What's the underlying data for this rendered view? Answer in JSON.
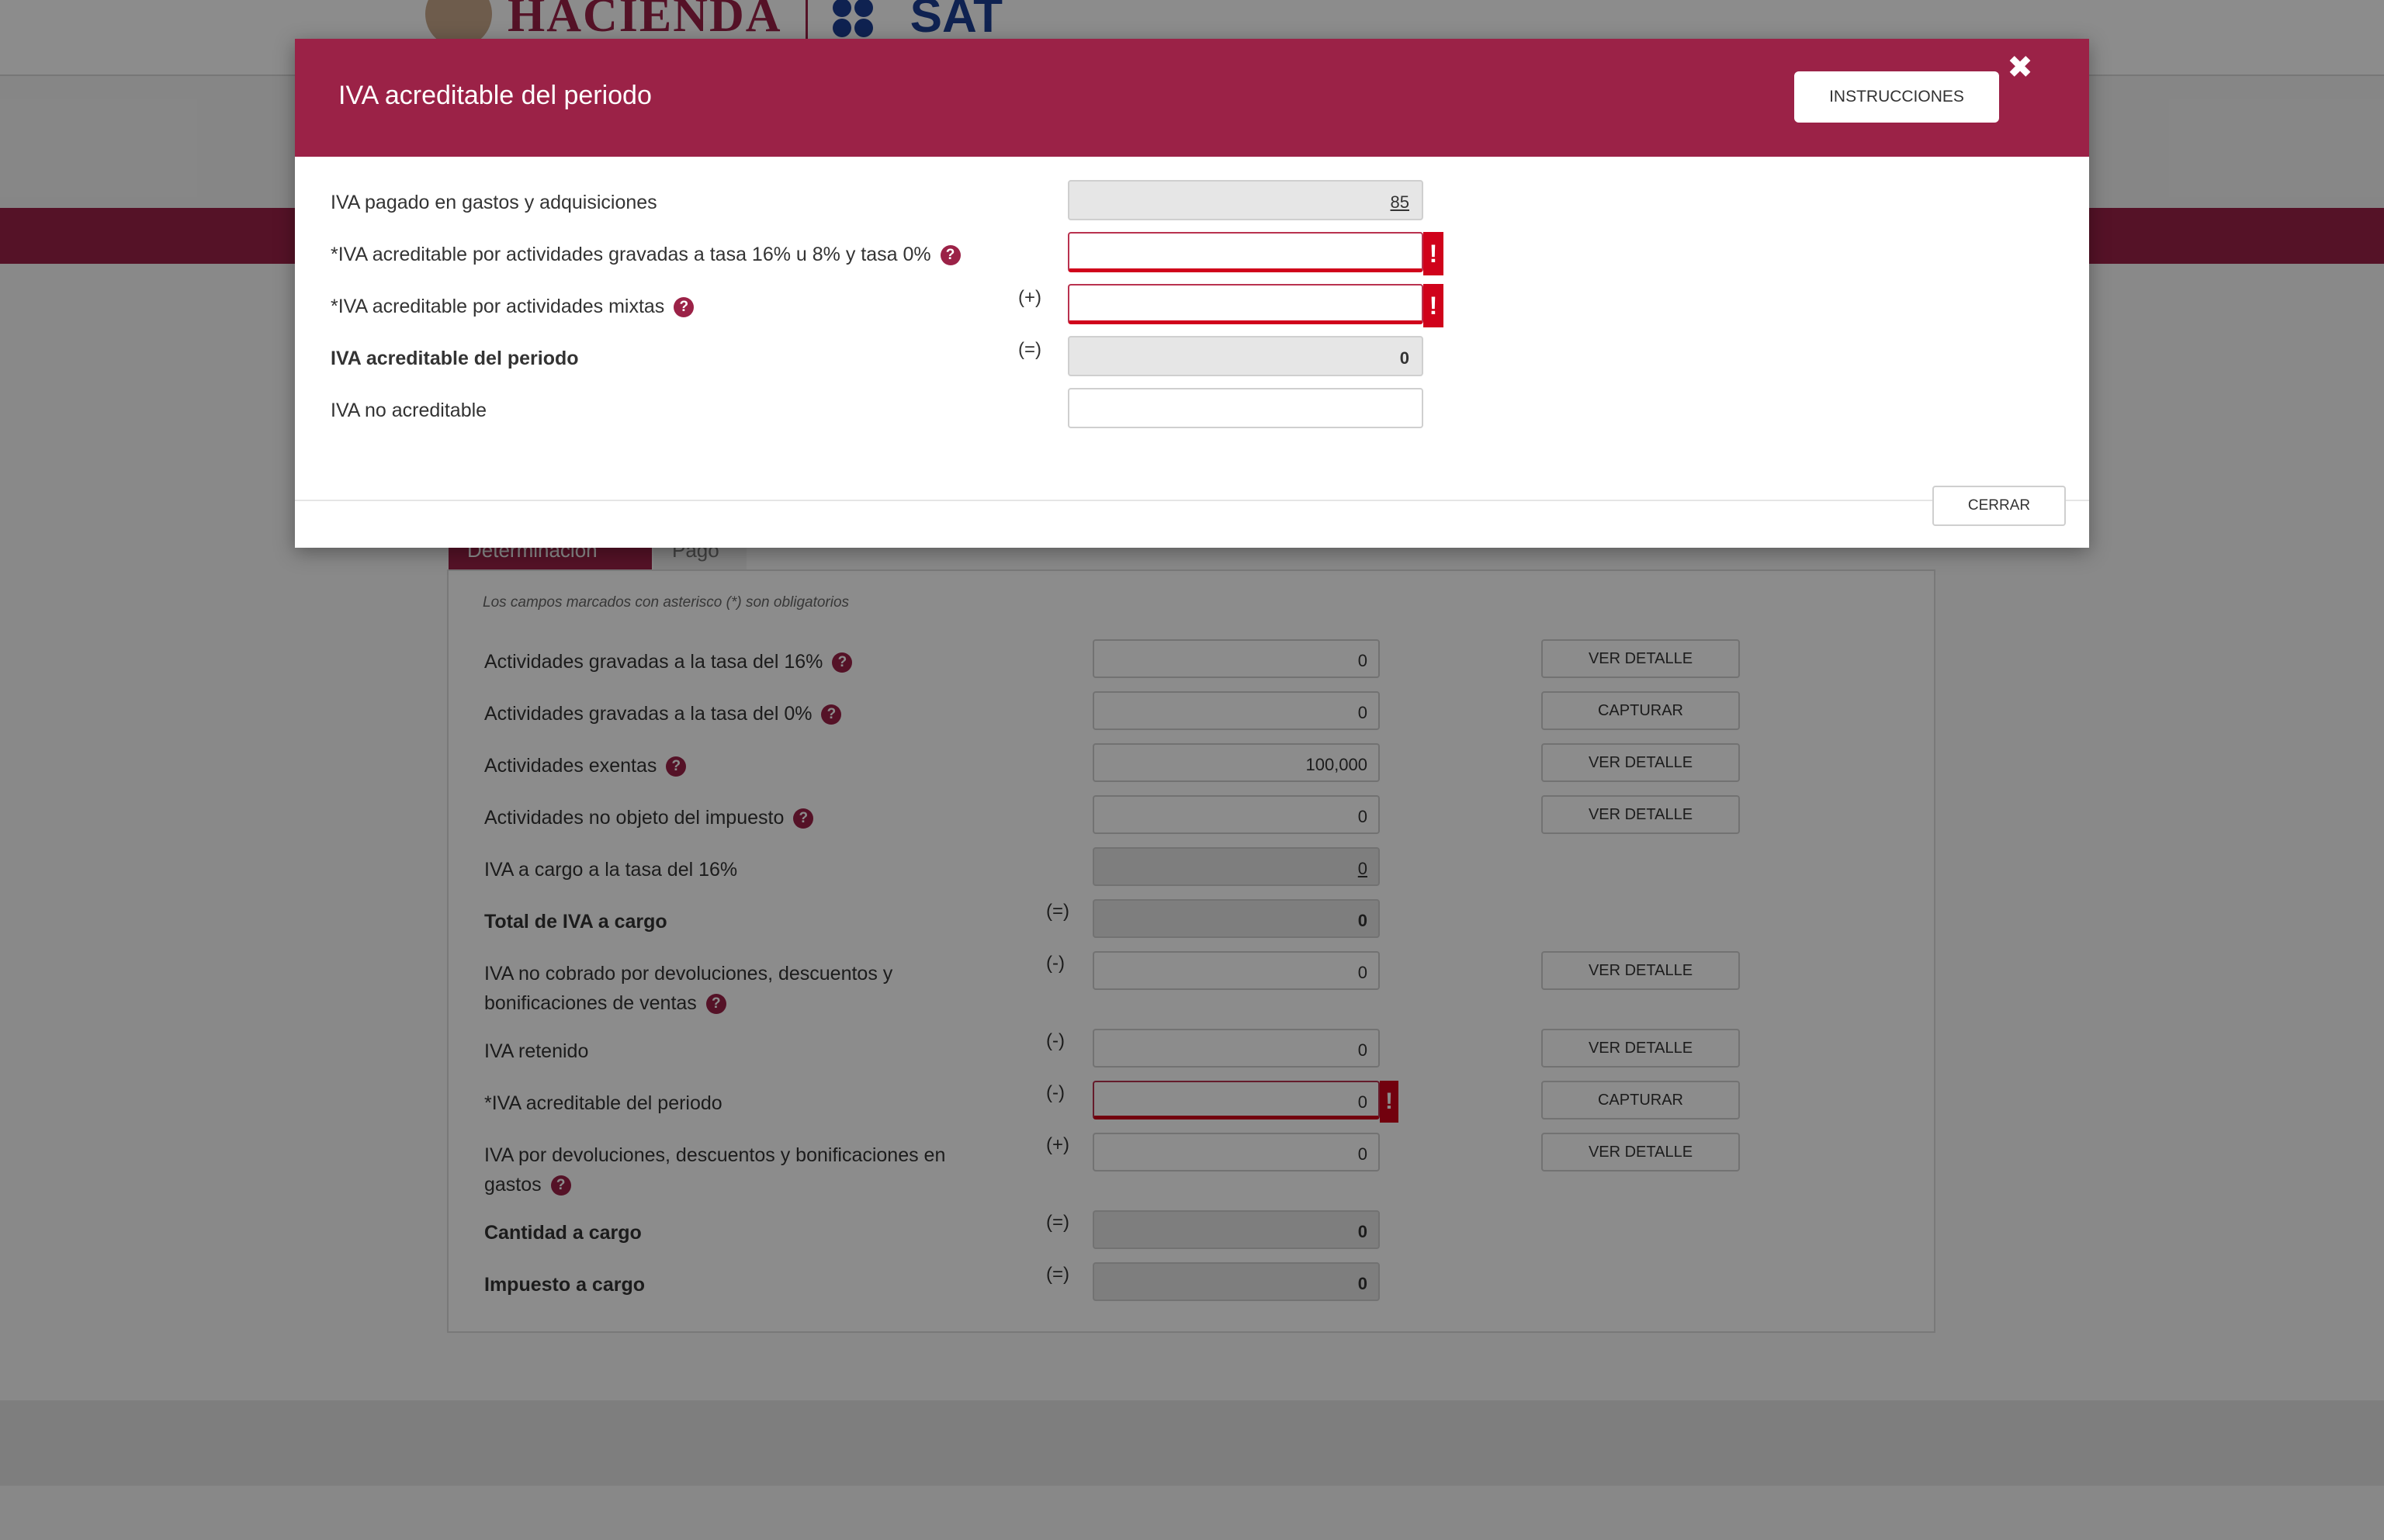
{
  "header": {
    "brand_hacienda": "HACIENDA",
    "brand_sat": "SAT"
  },
  "tabs": [
    "Determinación",
    "Pago"
  ],
  "form": {
    "required_note": "Los campos marcados con asterisco (*) son obligatorios",
    "rows": [
      {
        "label": "Actividades gravadas a la tasa del 16%",
        "op": "",
        "value": "0",
        "button": "VER DETALLE"
      },
      {
        "label": "Actividades gravadas a la tasa del 0%",
        "op": "",
        "value": "0",
        "button": "CAPTURAR"
      },
      {
        "label": "Actividades exentas",
        "op": "",
        "value": "100,000",
        "button": "VER DETALLE"
      },
      {
        "label": "Actividades no objeto del impuesto",
        "op": "",
        "value": "0",
        "button": "VER DETALLE"
      },
      {
        "label": "IVA a cargo a la tasa del 16%",
        "op": "",
        "value": "0",
        "button": ""
      },
      {
        "label": "Total de IVA a cargo",
        "op": "(=)",
        "value": "0",
        "button": ""
      },
      {
        "label": "IVA no cobrado por devoluciones, descuentos y bonificaciones de ventas",
        "op": "(-)",
        "value": "0",
        "button": "VER DETALLE"
      },
      {
        "label": "IVA retenido",
        "op": "(-)",
        "value": "0",
        "button": "VER DETALLE"
      },
      {
        "label": "*IVA acreditable del periodo",
        "op": "(-)",
        "value": "0",
        "button": "CAPTURAR"
      },
      {
        "label": "IVA por devoluciones, descuentos y bonificaciones en gastos",
        "op": "(+)",
        "value": "0",
        "button": "VER DETALLE"
      },
      {
        "label": "Cantidad a cargo",
        "op": "(=)",
        "value": "0",
        "button": ""
      },
      {
        "label": "Impuesto a cargo",
        "op": "(=)",
        "value": "0",
        "button": ""
      }
    ]
  },
  "modal": {
    "title": "IVA acreditable del periodo",
    "instructions_label": "INSTRUCCIONES",
    "close_icon": "close-icon",
    "close_label": "CERRAR",
    "rows": [
      {
        "label": "IVA pagado en gastos y adquisiciones",
        "op": "",
        "value": "85"
      },
      {
        "label": "*IVA acreditable por actividades gravadas a tasa 16% u 8% y tasa 0%",
        "op": "",
        "value": ""
      },
      {
        "label": "*IVA acreditable por actividades mixtas",
        "op": "(+)",
        "value": ""
      },
      {
        "label": "IVA acreditable del periodo",
        "op": "(=)",
        "value": "0"
      },
      {
        "label": "IVA no acreditable",
        "op": "",
        "value": ""
      }
    ],
    "error_mark": "!"
  },
  "icons": {
    "help": "?",
    "close": "✖"
  },
  "colors": {
    "brand": "#9b2247",
    "error": "#d0021b"
  }
}
